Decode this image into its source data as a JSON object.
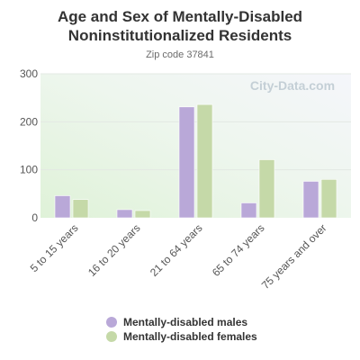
{
  "chart_data": {
    "type": "bar",
    "title": "Age and Sex of Mentally-Disabled Noninstitutionalized Residents",
    "title_lines": [
      "Age and Sex of Mentally-Disabled",
      "Noninstitutionalized Residents"
    ],
    "subtitle": "Zip code 37841",
    "watermark": "City-Data.com",
    "categories": [
      "5 to 15 years",
      "16 to 20 years",
      "21 to 64 years",
      "65 to 74 years",
      "75 years and over"
    ],
    "series": [
      {
        "name": "Mentally-disabled males",
        "color": "#b9a8d8",
        "values": [
          46,
          17,
          231,
          31,
          76
        ]
      },
      {
        "name": "Mentally-disabled females",
        "color": "#c5d9a8",
        "values": [
          38,
          15,
          236,
          121,
          80
        ]
      }
    ],
    "ylim": [
      0,
      300
    ],
    "yticks": [
      0,
      100,
      200,
      300
    ],
    "grid": true,
    "legend_position": "bottom"
  }
}
